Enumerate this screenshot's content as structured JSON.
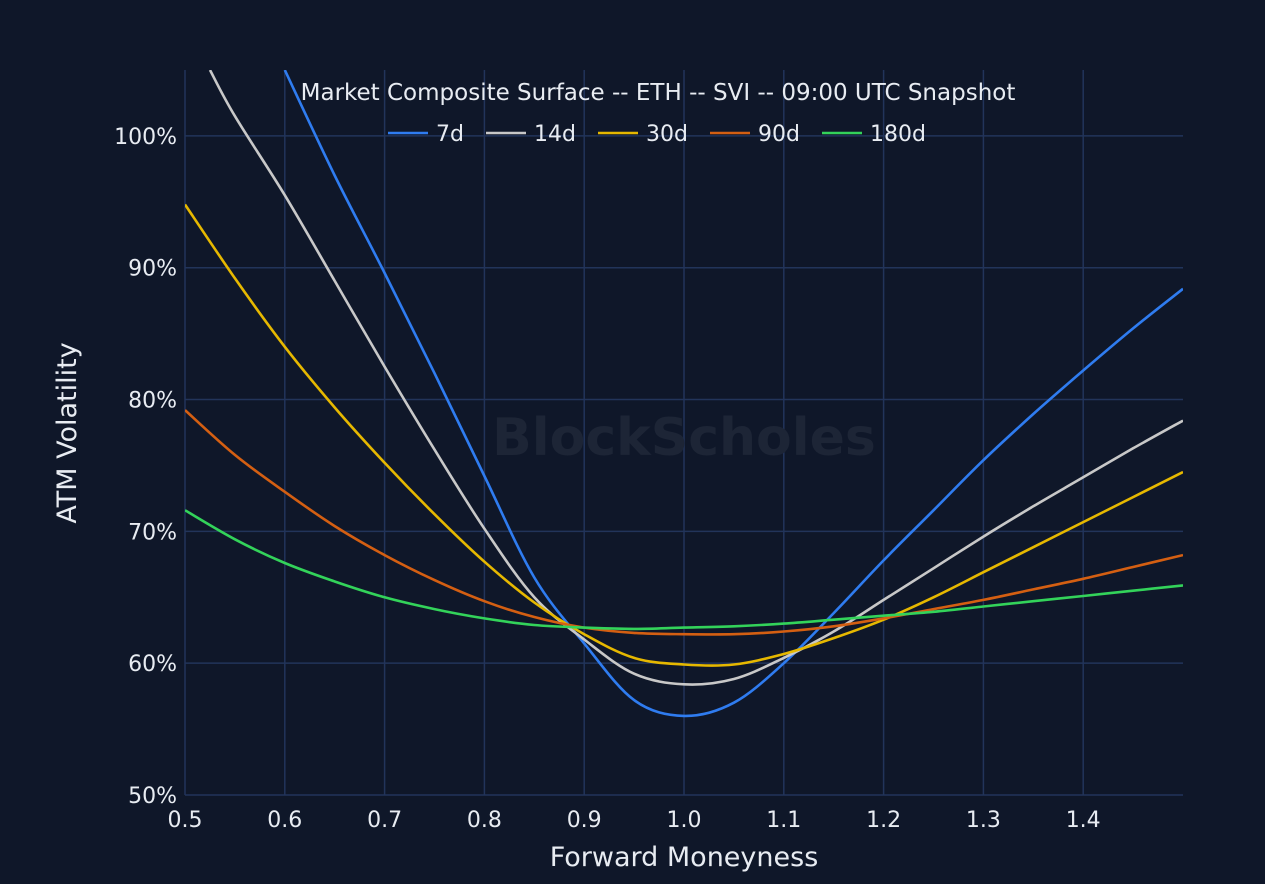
{
  "chart_data": {
    "type": "line",
    "title": "Market Composite Surface -- ETH -- SVI -- 09:00 UTC Snapshot",
    "xlabel": "Forward Moneyness",
    "ylabel": "ATM Volatility",
    "watermark": "BlockScholes",
    "xlim": [
      0.5,
      1.5
    ],
    "ylim": [
      50,
      105
    ],
    "x_ticks": [
      0.5,
      0.6,
      0.7,
      0.8,
      0.9,
      1.0,
      1.1,
      1.2,
      1.3,
      1.4
    ],
    "x_tick_labels": [
      "0.5",
      "0.6",
      "0.7",
      "0.8",
      "0.9",
      "1.0",
      "1.1",
      "1.2",
      "1.3",
      "1.4"
    ],
    "y_ticks": [
      50,
      60,
      70,
      80,
      90,
      100
    ],
    "y_tick_labels": [
      "50%",
      "60%",
      "70%",
      "80%",
      "90%",
      "100%"
    ],
    "grid": true,
    "legend_position": "top-center",
    "background_color": "#0f1729",
    "grid_color": "#22345a",
    "series": [
      {
        "name": "7d",
        "color": "#2f7cf0",
        "x": [
          0.6,
          0.65,
          0.7,
          0.75,
          0.8,
          0.85,
          0.9,
          0.95,
          1.0,
          1.05,
          1.1,
          1.15,
          1.2,
          1.25,
          1.3,
          1.35,
          1.4,
          1.45,
          1.5
        ],
        "y": [
          105.0,
          97.0,
          89.6,
          82.0,
          74.2,
          66.5,
          61.5,
          57.2,
          56.0,
          57.0,
          60.0,
          63.8,
          67.8,
          71.6,
          75.4,
          78.9,
          82.2,
          85.4,
          88.4
        ]
      },
      {
        "name": "14d",
        "color": "#c8c8c8",
        "x": [
          0.525,
          0.55,
          0.6,
          0.65,
          0.7,
          0.75,
          0.8,
          0.85,
          0.9,
          0.95,
          1.0,
          1.05,
          1.1,
          1.15,
          1.2,
          1.25,
          1.3,
          1.35,
          1.4,
          1.45,
          1.5
        ],
        "y": [
          105.0,
          101.5,
          95.5,
          89.0,
          82.5,
          76.2,
          70.2,
          65.0,
          61.8,
          59.2,
          58.4,
          58.8,
          60.4,
          62.4,
          64.8,
          67.2,
          69.6,
          71.9,
          74.1,
          76.3,
          78.4
        ]
      },
      {
        "name": "30d",
        "color": "#e6b800",
        "x": [
          0.5,
          0.55,
          0.6,
          0.65,
          0.7,
          0.75,
          0.8,
          0.85,
          0.9,
          0.95,
          1.0,
          1.05,
          1.1,
          1.15,
          1.2,
          1.25,
          1.3,
          1.35,
          1.4,
          1.45,
          1.5
        ],
        "y": [
          94.8,
          89.2,
          84.0,
          79.4,
          75.2,
          71.3,
          67.7,
          64.6,
          62.2,
          60.4,
          59.9,
          59.9,
          60.7,
          61.9,
          63.3,
          65.0,
          66.9,
          68.8,
          70.7,
          72.6,
          74.5
        ]
      },
      {
        "name": "90d",
        "color": "#d45f12",
        "x": [
          0.5,
          0.55,
          0.6,
          0.65,
          0.7,
          0.75,
          0.8,
          0.85,
          0.9,
          0.95,
          1.0,
          1.05,
          1.1,
          1.15,
          1.2,
          1.25,
          1.3,
          1.35,
          1.4,
          1.45,
          1.5
        ],
        "y": [
          79.2,
          75.8,
          73.0,
          70.4,
          68.2,
          66.3,
          64.7,
          63.5,
          62.7,
          62.3,
          62.2,
          62.2,
          62.4,
          62.8,
          63.4,
          64.1,
          64.8,
          65.6,
          66.4,
          67.3,
          68.2
        ]
      },
      {
        "name": "180d",
        "color": "#33d35a",
        "x": [
          0.5,
          0.55,
          0.6,
          0.65,
          0.7,
          0.75,
          0.8,
          0.85,
          0.9,
          0.95,
          1.0,
          1.05,
          1.1,
          1.15,
          1.2,
          1.25,
          1.3,
          1.35,
          1.4,
          1.45,
          1.5
        ],
        "y": [
          71.6,
          69.4,
          67.6,
          66.2,
          65.0,
          64.1,
          63.4,
          62.9,
          62.7,
          62.6,
          62.7,
          62.8,
          63.0,
          63.3,
          63.6,
          63.9,
          64.3,
          64.7,
          65.1,
          65.5,
          65.9
        ]
      }
    ]
  }
}
